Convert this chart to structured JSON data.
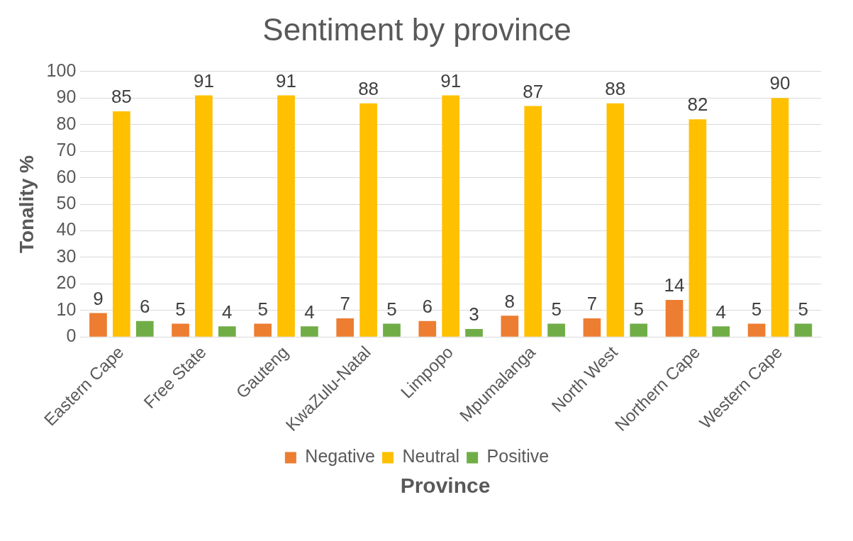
{
  "chart_data": {
    "type": "bar",
    "title": "Sentiment by province",
    "xlabel": "Province",
    "ylabel": "Tonality %",
    "categories": [
      "Eastern Cape",
      "Free State",
      "Gauteng",
      "KwaZulu-Natal",
      "Limpopo",
      "Mpumalanga",
      "North West",
      "Northern Cape",
      "Western Cape"
    ],
    "series": [
      {
        "name": "Negative",
        "color": "#ed7d31",
        "values": [
          9,
          5,
          5,
          7,
          6,
          8,
          7,
          14,
          5
        ]
      },
      {
        "name": "Neutral",
        "color": "#ffc000",
        "values": [
          85,
          91,
          91,
          88,
          91,
          87,
          88,
          82,
          90
        ]
      },
      {
        "name": "Positive",
        "color": "#70ad47",
        "values": [
          6,
          4,
          4,
          5,
          3,
          5,
          5,
          4,
          5
        ]
      }
    ],
    "ylim": [
      0,
      100
    ],
    "yticks": [
      0,
      10,
      20,
      30,
      40,
      50,
      60,
      70,
      80,
      90,
      100
    ],
    "grid": "y",
    "legend": "bottom",
    "data_labels": true
  }
}
